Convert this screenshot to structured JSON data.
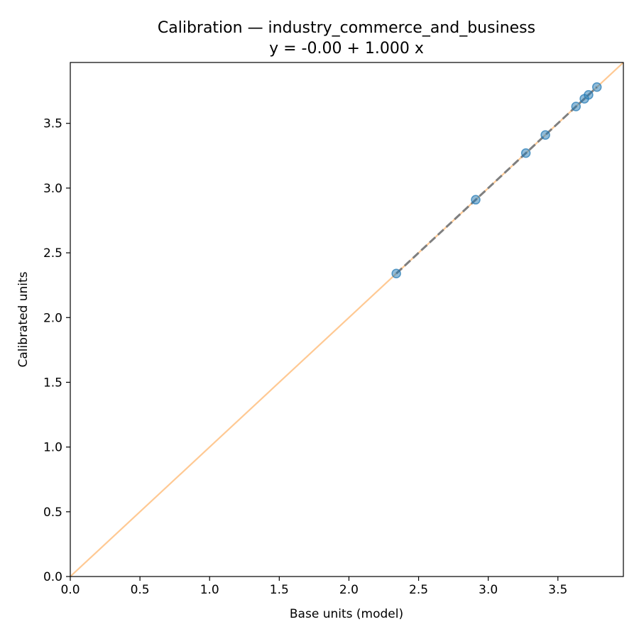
{
  "chart_data": {
    "type": "scatter",
    "title": "Calibration — industry_commerce_and_business",
    "subtitle": "y = -0.00 + 1.000 x",
    "xlabel": "Base units (model)",
    "ylabel": "Calibrated units",
    "xlim": [
      0.0,
      3.97
    ],
    "ylim": [
      0.0,
      3.97
    ],
    "xticks": [
      0.0,
      0.5,
      1.0,
      1.5,
      2.0,
      2.5,
      3.0,
      3.5
    ],
    "yticks": [
      0.0,
      0.5,
      1.0,
      1.5,
      2.0,
      2.5,
      3.0,
      3.5
    ],
    "xtick_labels": [
      "0.0",
      "0.5",
      "1.0",
      "1.5",
      "2.0",
      "2.5",
      "3.0",
      "3.5"
    ],
    "ytick_labels": [
      "0.0",
      "0.5",
      "1.0",
      "1.5",
      "2.0",
      "2.5",
      "3.0",
      "3.5"
    ],
    "grid": false,
    "points": [
      {
        "x": 2.34,
        "y": 2.34
      },
      {
        "x": 2.91,
        "y": 2.91
      },
      {
        "x": 3.27,
        "y": 3.27
      },
      {
        "x": 3.41,
        "y": 3.41
      },
      {
        "x": 3.63,
        "y": 3.63
      },
      {
        "x": 3.69,
        "y": 3.69
      },
      {
        "x": 3.72,
        "y": 3.72
      },
      {
        "x": 3.78,
        "y": 3.78
      }
    ],
    "identity_line": {
      "from": [
        0.0,
        0.0
      ],
      "to": [
        3.97,
        3.97
      ]
    },
    "fit_line": {
      "intercept": -0.0,
      "slope": 1.0,
      "x_range": [
        2.34,
        3.78
      ]
    },
    "colors": {
      "points": "#1f77b4",
      "identity_line": "#ffbb78",
      "fit_line": "#7f7f7f",
      "axes": "#000000"
    }
  }
}
